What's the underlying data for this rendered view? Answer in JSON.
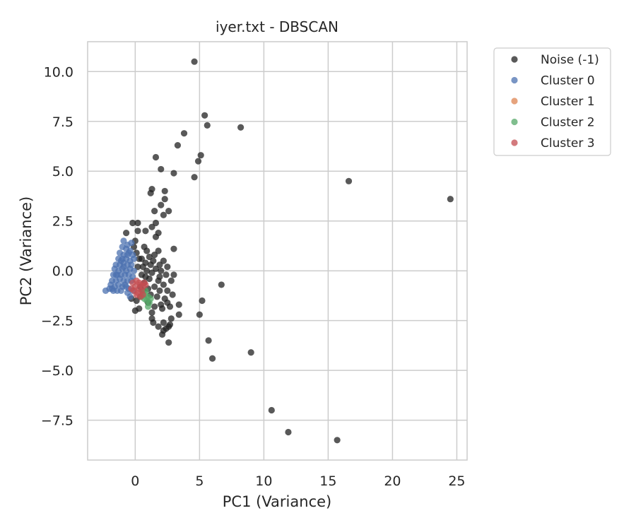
{
  "chart_data": {
    "type": "scatter",
    "title": "iyer.txt - DBSCAN",
    "xlabel": "PC1 (Variance)",
    "ylabel": "PC2 (Variance)",
    "xlim": [
      -3.7,
      25.8
    ],
    "ylim": [
      -9.5,
      11.5
    ],
    "x_ticks": [
      0,
      5,
      10,
      15,
      20,
      25
    ],
    "x_tick_labels": [
      "0",
      "5",
      "10",
      "15",
      "20",
      "25"
    ],
    "y_ticks": [
      -7.5,
      -5.0,
      -2.5,
      0.0,
      2.5,
      5.0,
      7.5,
      10.0
    ],
    "y_tick_labels": [
      "−7.5",
      "−5.0",
      "−2.5",
      "0.0",
      "2.5",
      "5.0",
      "7.5",
      "10.0"
    ],
    "grid": true,
    "legend_position": "outside-top-right",
    "series": [
      {
        "name": "Noise (-1)",
        "color": "#222222",
        "points": [
          [
            4.6,
            10.5
          ],
          [
            5.4,
            7.8
          ],
          [
            5.6,
            7.3
          ],
          [
            8.2,
            7.2
          ],
          [
            3.8,
            6.9
          ],
          [
            3.3,
            6.3
          ],
          [
            1.6,
            5.7
          ],
          [
            5.1,
            5.8
          ],
          [
            4.9,
            5.5
          ],
          [
            2.0,
            5.1
          ],
          [
            3.0,
            4.9
          ],
          [
            4.6,
            4.7
          ],
          [
            1.3,
            4.1
          ],
          [
            1.2,
            3.9
          ],
          [
            2.3,
            4.0
          ],
          [
            2.3,
            3.6
          ],
          [
            2.0,
            3.3
          ],
          [
            1.5,
            3.0
          ],
          [
            2.6,
            3.0
          ],
          [
            2.2,
            2.8
          ],
          [
            1.6,
            2.4
          ],
          [
            -0.2,
            2.4
          ],
          [
            0.2,
            2.4
          ],
          [
            1.3,
            2.2
          ],
          [
            0.2,
            2.0
          ],
          [
            0.8,
            2.0
          ],
          [
            1.8,
            1.9
          ],
          [
            -0.7,
            1.9
          ],
          [
            1.6,
            1.7
          ],
          [
            0.0,
            1.5
          ],
          [
            -0.1,
            1.2
          ],
          [
            3.0,
            1.1
          ],
          [
            0.9,
            1.0
          ],
          [
            1.8,
            1.0
          ],
          [
            1.1,
            0.7
          ],
          [
            1.5,
            0.8
          ],
          [
            0.5,
            0.6
          ],
          [
            2.2,
            0.5
          ],
          [
            0.1,
            0.9
          ],
          [
            0.3,
            0.6
          ],
          [
            0.8,
            0.4
          ],
          [
            1.2,
            0.3
          ],
          [
            1.9,
            0.3
          ],
          [
            0.6,
            0.2
          ],
          [
            1.6,
            0.1
          ],
          [
            2.5,
            0.2
          ],
          [
            0.9,
            0.0
          ],
          [
            1.3,
            -0.1
          ],
          [
            2.0,
            0.0
          ],
          [
            0.5,
            -0.2
          ],
          [
            2.4,
            -0.2
          ],
          [
            3.0,
            -0.2
          ],
          [
            1.1,
            -0.4
          ],
          [
            1.8,
            -0.5
          ],
          [
            0.7,
            -0.6
          ],
          [
            2.2,
            -0.7
          ],
          [
            1.5,
            -0.8
          ],
          [
            2.8,
            -0.5
          ],
          [
            0.6,
            -1.0
          ],
          [
            1.9,
            -1.0
          ],
          [
            2.5,
            -1.0
          ],
          [
            1.2,
            -1.2
          ],
          [
            1.7,
            -1.3
          ],
          [
            2.3,
            -1.4
          ],
          [
            0.4,
            -1.3
          ],
          [
            2.9,
            -1.2
          ],
          [
            1.0,
            -1.6
          ],
          [
            2.0,
            -1.7
          ],
          [
            2.5,
            -1.6
          ],
          [
            0.1,
            -1.5
          ],
          [
            -0.3,
            -1.4
          ],
          [
            1.5,
            -1.8
          ],
          [
            2.7,
            -1.8
          ],
          [
            3.4,
            -1.7
          ],
          [
            2.1,
            -1.9
          ],
          [
            0.3,
            -1.9
          ],
          [
            0.0,
            -2.0
          ],
          [
            1.3,
            -2.1
          ],
          [
            3.4,
            -2.2
          ],
          [
            1.3,
            -2.4
          ],
          [
            2.8,
            -2.4
          ],
          [
            1.4,
            -2.6
          ],
          [
            2.2,
            -2.6
          ],
          [
            2.6,
            -2.8
          ],
          [
            2.7,
            -2.7
          ],
          [
            2.2,
            -3.0
          ],
          [
            2.4,
            -2.9
          ],
          [
            2.1,
            -3.2
          ],
          [
            1.8,
            -2.8
          ],
          [
            2.6,
            -3.6
          ],
          [
            6.7,
            -0.7
          ],
          [
            5.2,
            -1.5
          ],
          [
            5.0,
            -2.2
          ],
          [
            5.7,
            -3.5
          ],
          [
            6.0,
            -4.4
          ],
          [
            9.0,
            -4.1
          ],
          [
            10.6,
            -7.0
          ],
          [
            11.9,
            -8.1
          ],
          [
            15.7,
            -8.5
          ],
          [
            16.6,
            4.5
          ],
          [
            24.5,
            3.6
          ],
          [
            0.4,
            -0.8
          ],
          [
            1.0,
            -0.9
          ],
          [
            0.2,
            0.2
          ],
          [
            1.4,
            0.5
          ],
          [
            0.7,
            1.2
          ],
          [
            1.9,
            -0.3
          ],
          [
            0.8,
            -0.3
          ]
        ]
      },
      {
        "name": "Cluster 0",
        "color": "#4c72b0",
        "points": [
          [
            -0.9,
            1.5
          ],
          [
            -0.6,
            1.3
          ],
          [
            -0.3,
            1.4
          ],
          [
            -1.0,
            1.2
          ],
          [
            -0.7,
            1.1
          ],
          [
            -0.4,
            1.0
          ],
          [
            -1.2,
            0.9
          ],
          [
            -0.9,
            0.8
          ],
          [
            -0.5,
            0.9
          ],
          [
            -0.2,
            0.8
          ],
          [
            -1.3,
            0.6
          ],
          [
            -1.0,
            0.6
          ],
          [
            -0.7,
            0.6
          ],
          [
            -0.4,
            0.5
          ],
          [
            -0.1,
            0.6
          ],
          [
            -1.5,
            0.3
          ],
          [
            -1.2,
            0.3
          ],
          [
            -0.9,
            0.4
          ],
          [
            -0.6,
            0.3
          ],
          [
            -0.3,
            0.3
          ],
          [
            -1.6,
            0.1
          ],
          [
            -1.3,
            0.0
          ],
          [
            -1.0,
            0.1
          ],
          [
            -0.7,
            0.0
          ],
          [
            -0.4,
            0.1
          ],
          [
            -0.1,
            0.0
          ],
          [
            -1.7,
            -0.2
          ],
          [
            -1.4,
            -0.2
          ],
          [
            -1.1,
            -0.2
          ],
          [
            -0.8,
            -0.2
          ],
          [
            -0.5,
            -0.2
          ],
          [
            -0.2,
            -0.3
          ],
          [
            -1.8,
            -0.5
          ],
          [
            -1.5,
            -0.5
          ],
          [
            -1.2,
            -0.4
          ],
          [
            -0.9,
            -0.5
          ],
          [
            -0.6,
            -0.5
          ],
          [
            -0.3,
            -0.5
          ],
          [
            -1.9,
            -0.7
          ],
          [
            -1.6,
            -0.8
          ],
          [
            -1.3,
            -0.7
          ],
          [
            -1.0,
            -0.8
          ],
          [
            -0.7,
            -0.8
          ],
          [
            -2.0,
            -0.9
          ],
          [
            -1.7,
            -1.0
          ],
          [
            -1.4,
            -1.0
          ],
          [
            -1.1,
            -1.0
          ],
          [
            -2.3,
            -1.0
          ],
          [
            -0.9,
            0.2
          ],
          [
            -1.1,
            0.5
          ],
          [
            -0.6,
            0.8
          ],
          [
            -0.8,
            -0.7
          ],
          [
            -0.5,
            -0.9
          ],
          [
            -1.5,
            -0.2
          ],
          [
            -1.8,
            -0.9
          ],
          [
            -0.4,
            -1.3
          ],
          [
            -0.6,
            -1.1
          ],
          [
            -0.2,
            -1.0
          ]
        ]
      },
      {
        "name": "Cluster 1",
        "color": "#dd8452",
        "points": []
      },
      {
        "name": "Cluster 2",
        "color": "#55a868",
        "points": [
          [
            0.6,
            -1.1
          ],
          [
            0.8,
            -1.2
          ],
          [
            1.0,
            -1.3
          ],
          [
            0.9,
            -1.5
          ],
          [
            1.1,
            -1.6
          ],
          [
            1.0,
            -1.8
          ],
          [
            0.7,
            -1.4
          ],
          [
            1.2,
            -1.4
          ],
          [
            0.5,
            -1.3
          ],
          [
            0.8,
            -1.0
          ]
        ]
      },
      {
        "name": "Cluster 3",
        "color": "#c44e52",
        "points": [
          [
            -0.2,
            -0.6
          ],
          [
            0.1,
            -0.5
          ],
          [
            0.4,
            -0.7
          ],
          [
            0.7,
            -0.6
          ],
          [
            0.8,
            -0.7
          ],
          [
            0.0,
            -0.8
          ],
          [
            0.3,
            -0.9
          ],
          [
            0.6,
            -0.8
          ],
          [
            -0.1,
            -1.0
          ],
          [
            0.2,
            -1.1
          ],
          [
            0.5,
            -1.0
          ],
          [
            0.1,
            -1.2
          ],
          [
            0.4,
            -1.3
          ],
          [
            0.3,
            -0.6
          ],
          [
            0.6,
            -1.2
          ],
          [
            -0.3,
            -0.9
          ]
        ]
      }
    ]
  }
}
